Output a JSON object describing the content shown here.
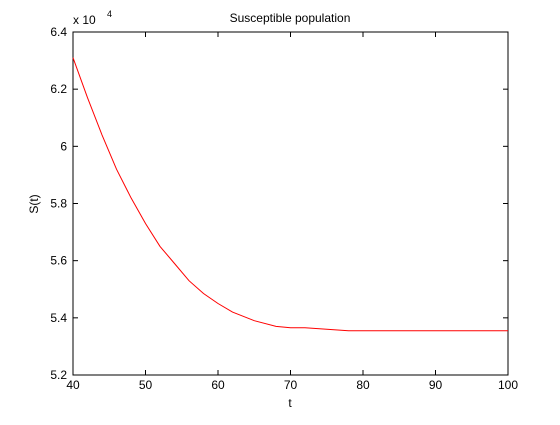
{
  "chart_data": {
    "type": "line",
    "title": "Susceptible population",
    "xlabel": "t",
    "ylabel": "S(t)",
    "exponent_label": "x 10",
    "exponent_power": "4",
    "xlim": [
      40,
      100
    ],
    "ylim": [
      52000,
      64000
    ],
    "x_ticks": [
      40,
      50,
      60,
      70,
      80,
      90,
      100
    ],
    "x_tick_labels": [
      "40",
      "50",
      "60",
      "70",
      "80",
      "90",
      "100"
    ],
    "y_ticks": [
      52000,
      54000,
      56000,
      58000,
      60000,
      62000,
      64000
    ],
    "y_tick_labels": [
      "5.2",
      "5.4",
      "5.6",
      "5.8",
      "6",
      "6.2",
      "6.4"
    ],
    "grid": false,
    "series": [
      {
        "color": "#ff0000",
        "x": [
          40,
          42,
          44,
          46,
          48,
          50,
          52,
          54,
          56,
          58,
          60,
          62,
          65,
          68,
          70,
          72,
          75,
          78,
          80,
          85,
          90,
          95,
          100
        ],
        "y": [
          63100,
          61700,
          60400,
          59200,
          58200,
          57300,
          56500,
          55900,
          55300,
          54850,
          54500,
          54200,
          53900,
          53700,
          53650,
          53650,
          53600,
          53550,
          53550,
          53550,
          53550,
          53550,
          53550
        ]
      }
    ]
  }
}
